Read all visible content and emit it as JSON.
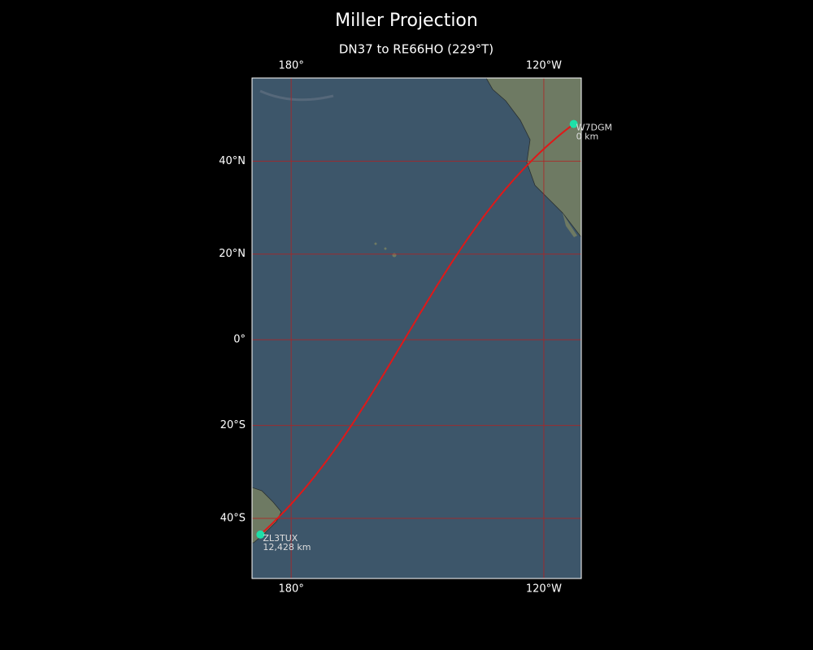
{
  "title": "Miller Projection",
  "subtitle": "DN37 to RE66HO (229°T)",
  "map": {
    "projection": "miller",
    "lon_range": [
      170.7,
      248.9
    ],
    "lat_range": [
      -51.4,
      55.4
    ],
    "lon_ticks": [
      {
        "value": 180,
        "label": "180°"
      },
      {
        "value": 240,
        "label": "120°W"
      }
    ],
    "lat_ticks": [
      {
        "value": 40,
        "label": "40°N"
      },
      {
        "value": 20,
        "label": "20°N"
      },
      {
        "value": 0,
        "label": "0°"
      },
      {
        "value": -20,
        "label": "20°S"
      },
      {
        "value": -40,
        "label": "40°S"
      }
    ],
    "route_color": "#e01818",
    "station_color": "#1de0a8",
    "stations": [
      {
        "name": "W7DGM",
        "distance": "0 km",
        "lat": 47.2,
        "lon": 247.1
      },
      {
        "name": "ZL3TUX",
        "distance": "12,428 km",
        "lat": -43.2,
        "lon": 172.7
      }
    ]
  }
}
